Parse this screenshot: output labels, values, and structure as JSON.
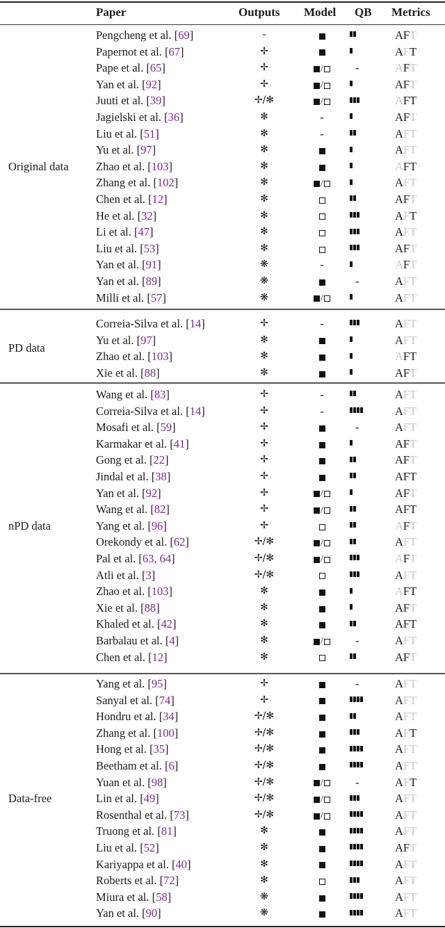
{
  "header": {
    "paper": "Paper",
    "outputs": "Outputs",
    "model": "Model",
    "qb": "QB",
    "metrics": "Metrics"
  },
  "legend_symbols": {
    "dash": "-",
    "cross": "✢",
    "asterisk": "✻",
    "heavy_asterisk": "❋",
    "cross_or_asterisk": "✢/✻",
    "filled_square": "■",
    "open_square": "□",
    "filled_or_open": "■/□"
  },
  "colors": {
    "citation": "#7b2a8b",
    "metric_active": "#1a1a1a",
    "metric_inactive": "#c8c8c8"
  },
  "groups": [
    {
      "label": "Original data",
      "rows": [
        {
          "author": "Pengcheng et al. ",
          "cite": "69",
          "outputs": "-",
          "model": "filled",
          "qb": 2,
          "metrics": [
            1,
            1,
            0
          ]
        },
        {
          "author": "Papernot et al. ",
          "cite": "67",
          "outputs": "✢",
          "model": "filled",
          "qb": 1,
          "metrics": [
            1,
            0,
            1
          ]
        },
        {
          "author": "Pape et al. ",
          "cite": "65",
          "outputs": "✢",
          "model": "both",
          "qb": 0,
          "metrics": [
            0,
            1,
            0
          ]
        },
        {
          "author": "Yan et al. ",
          "cite": "92",
          "outputs": "✢",
          "model": "both",
          "qb": 1,
          "metrics": [
            1,
            1,
            0
          ]
        },
        {
          "author": "Juuti et al. ",
          "cite": "39",
          "outputs": "✢/✻",
          "model": "both",
          "qb": 3,
          "metrics": [
            0,
            1,
            1
          ]
        },
        {
          "author": "Jagielski et al. ",
          "cite": "36",
          "outputs": "✻",
          "model": "-",
          "qb": 1,
          "metrics": [
            1,
            1,
            0
          ]
        },
        {
          "author": "Liu et al. ",
          "cite": "51",
          "outputs": "✻",
          "model": "-",
          "qb": 2,
          "metrics": [
            1,
            0,
            0
          ]
        },
        {
          "author": "Yu et al. ",
          "cite": "97",
          "outputs": "✻",
          "model": "filled",
          "qb": 1,
          "metrics": [
            1,
            0,
            0
          ]
        },
        {
          "author": "Zhao et al. ",
          "cite": "103",
          "outputs": "✻",
          "model": "filled",
          "qb": 1,
          "metrics": [
            0,
            1,
            1
          ]
        },
        {
          "author": "Zhang et al. ",
          "cite": "102",
          "outputs": "✻",
          "model": "both",
          "qb": 1,
          "metrics": [
            1,
            0,
            0
          ]
        },
        {
          "author": "Chen et al. ",
          "cite": "12",
          "outputs": "✻",
          "model": "open",
          "qb": 2,
          "metrics": [
            1,
            1,
            0
          ]
        },
        {
          "author": "He et al. ",
          "cite": "32",
          "outputs": "✻",
          "model": "open",
          "qb": 3,
          "metrics": [
            1,
            0,
            1
          ]
        },
        {
          "author": "Li et al. ",
          "cite": "47",
          "outputs": "✻",
          "model": "open",
          "qb": 3,
          "metrics": [
            1,
            0,
            0
          ]
        },
        {
          "author": "Liu et al. ",
          "cite": "53",
          "outputs": "✻",
          "model": "open",
          "qb": 3,
          "metrics": [
            1,
            1,
            0
          ]
        },
        {
          "author": "Yan et al. ",
          "cite": "91",
          "outputs": "❋",
          "model": "-",
          "qb": 1,
          "metrics": [
            0,
            1,
            0
          ]
        },
        {
          "author": "Yan et al. ",
          "cite": "89",
          "outputs": "❋",
          "model": "filled",
          "qb": 0,
          "metrics": [
            1,
            0,
            0
          ]
        },
        {
          "author": "Milli et al. ",
          "cite": "57",
          "outputs": "❋",
          "model": "both",
          "qb": 1,
          "metrics": [
            1,
            0,
            0
          ]
        }
      ]
    },
    {
      "label": "PD data",
      "rows": [
        {
          "author": "Correia-Silva et al. ",
          "cite": "14",
          "outputs": "✢",
          "model": "-",
          "qb": 3,
          "metrics": [
            1,
            0,
            0
          ]
        },
        {
          "author": "Yu et al. ",
          "cite": "97",
          "outputs": "✻",
          "model": "filled",
          "qb": 1,
          "metrics": [
            1,
            0,
            0
          ]
        },
        {
          "author": "Zhao et al. ",
          "cite": "103",
          "outputs": "✻",
          "model": "filled",
          "qb": 1,
          "metrics": [
            0,
            1,
            1
          ]
        },
        {
          "author": "Xie et al. ",
          "cite": "88",
          "outputs": "✻",
          "model": "filled",
          "qb": 1,
          "metrics": [
            1,
            1,
            0
          ]
        }
      ]
    },
    {
      "label": "nPD data",
      "rows": [
        {
          "author": "Wang et al. ",
          "cite": "83",
          "outputs": "✢",
          "model": "-",
          "qb": 2,
          "metrics": [
            1,
            0,
            0
          ]
        },
        {
          "author": "Correia-Silva et al. ",
          "cite": "14",
          "outputs": "✢",
          "model": "-",
          "qb": 4,
          "metrics": [
            1,
            0,
            0
          ]
        },
        {
          "author": "Mosafi et al. ",
          "cite": "59",
          "outputs": "✢",
          "model": "filled",
          "qb": 0,
          "metrics": [
            1,
            0,
            0
          ]
        },
        {
          "author": "Karmakar et al. ",
          "cite": "41",
          "outputs": "✢",
          "model": "filled",
          "qb": 1,
          "metrics": [
            1,
            1,
            0
          ]
        },
        {
          "author": "Gong et al. ",
          "cite": "22",
          "outputs": "✢",
          "model": "filled",
          "qb": 2,
          "metrics": [
            1,
            1,
            0
          ]
        },
        {
          "author": "Jindal et al. ",
          "cite": "38",
          "outputs": "✢",
          "model": "filled",
          "qb": 2,
          "metrics": [
            1,
            1,
            1
          ]
        },
        {
          "author": "Yan et al. ",
          "cite": "92",
          "outputs": "✢",
          "model": "both",
          "qb": 1,
          "metrics": [
            1,
            1,
            0
          ]
        },
        {
          "author": "Wang et al. ",
          "cite": "82",
          "outputs": "✢",
          "model": "both",
          "qb": 2,
          "metrics": [
            1,
            1,
            1
          ]
        },
        {
          "author": "Yang et al. ",
          "cite": "96",
          "outputs": "✢",
          "model": "open",
          "qb": 2,
          "metrics": [
            0,
            1,
            0
          ]
        },
        {
          "author": "Orekondy et al. ",
          "cite": "62",
          "outputs": "✢/✻",
          "model": "both",
          "qb": 2,
          "metrics": [
            1,
            0,
            0
          ]
        },
        {
          "author": "Pal et al. ",
          "cite": "63, 64",
          "outputs": "✢/✻",
          "model": "both",
          "qb": 3,
          "metrics": [
            0,
            1,
            0
          ]
        },
        {
          "author": "Atli et al. ",
          "cite": "3",
          "outputs": "✢/✻",
          "model": "open",
          "qb": 3,
          "metrics": [
            1,
            0,
            0
          ]
        },
        {
          "author": "Zhao et al. ",
          "cite": "103",
          "outputs": "✻",
          "model": "filled",
          "qb": 1,
          "metrics": [
            0,
            1,
            1
          ]
        },
        {
          "author": "Xie et al. ",
          "cite": "88",
          "outputs": "✻",
          "model": "filled",
          "qb": 1,
          "metrics": [
            1,
            1,
            0
          ]
        },
        {
          "author": "Khaled et al. ",
          "cite": "42",
          "outputs": "✻",
          "model": "filled",
          "qb": 2,
          "metrics": [
            1,
            1,
            1
          ]
        },
        {
          "author": "Barbalau et al. ",
          "cite": "4",
          "outputs": "✻",
          "model": "both",
          "qb": 0,
          "metrics": [
            1,
            0,
            0
          ]
        },
        {
          "author": "Chen et al. ",
          "cite": "12",
          "outputs": "✻",
          "model": "open",
          "qb": 2,
          "metrics": [
            1,
            1,
            0
          ]
        }
      ]
    },
    {
      "label": "Data-free",
      "rows": [
        {
          "author": "Yang et al. ",
          "cite": "95",
          "outputs": "✢",
          "model": "filled",
          "qb": 0,
          "metrics": [
            1,
            0,
            0
          ]
        },
        {
          "author": "Sanyal et al. ",
          "cite": "74",
          "outputs": "✢",
          "model": "filled",
          "qb": 4,
          "metrics": [
            1,
            0,
            0
          ]
        },
        {
          "author": "Hondru et al. ",
          "cite": "34",
          "outputs": "✢/✻",
          "model": "filled",
          "qb": 2,
          "metrics": [
            1,
            0,
            0
          ]
        },
        {
          "author": "Zhang et al. ",
          "cite": "100",
          "outputs": "✢/✻",
          "model": "filled",
          "qb": 3,
          "metrics": [
            1,
            0,
            1
          ]
        },
        {
          "author": "Hong et al. ",
          "cite": "35",
          "outputs": "✢/✻",
          "model": "filled",
          "qb": 4,
          "metrics": [
            1,
            0,
            0
          ]
        },
        {
          "author": "Beetham et al. ",
          "cite": "6",
          "outputs": "✢/✻",
          "model": "filled",
          "qb": 4,
          "metrics": [
            1,
            0,
            0
          ]
        },
        {
          "author": "Yuan et al. ",
          "cite": "98",
          "outputs": "✢/✻",
          "model": "both",
          "qb": 0,
          "metrics": [
            1,
            0,
            1
          ]
        },
        {
          "author": "Lin et al. ",
          "cite": "49",
          "outputs": "✢/✻",
          "model": "both",
          "qb": 3,
          "metrics": [
            1,
            0,
            0
          ]
        },
        {
          "author": "Rosenthal et al. ",
          "cite": "73",
          "outputs": "✢/✻",
          "model": "both",
          "qb": 4,
          "metrics": [
            1,
            0,
            0
          ]
        },
        {
          "author": "Truong et al. ",
          "cite": "81",
          "outputs": "✻",
          "model": "filled",
          "qb": 4,
          "metrics": [
            1,
            0,
            0
          ]
        },
        {
          "author": "Liu et al. ",
          "cite": "52",
          "outputs": "✻",
          "model": "filled",
          "qb": 4,
          "metrics": [
            1,
            1,
            0
          ]
        },
        {
          "author": "Kariyappa et al. ",
          "cite": "40",
          "outputs": "✻",
          "model": "filled",
          "qb": 4,
          "metrics": [
            1,
            0,
            0
          ]
        },
        {
          "author": "Roberts et al. ",
          "cite": "72",
          "outputs": "✻",
          "model": "open",
          "qb": 3,
          "metrics": [
            1,
            0,
            0
          ]
        },
        {
          "author": "Miura et al. ",
          "cite": "58",
          "outputs": "❋",
          "model": "filled",
          "qb": 4,
          "metrics": [
            1,
            0,
            0
          ]
        },
        {
          "author": "Yan et al. ",
          "cite": "90",
          "outputs": "❋",
          "model": "filled",
          "qb": 4,
          "metrics": [
            1,
            0,
            0
          ]
        }
      ]
    }
  ]
}
